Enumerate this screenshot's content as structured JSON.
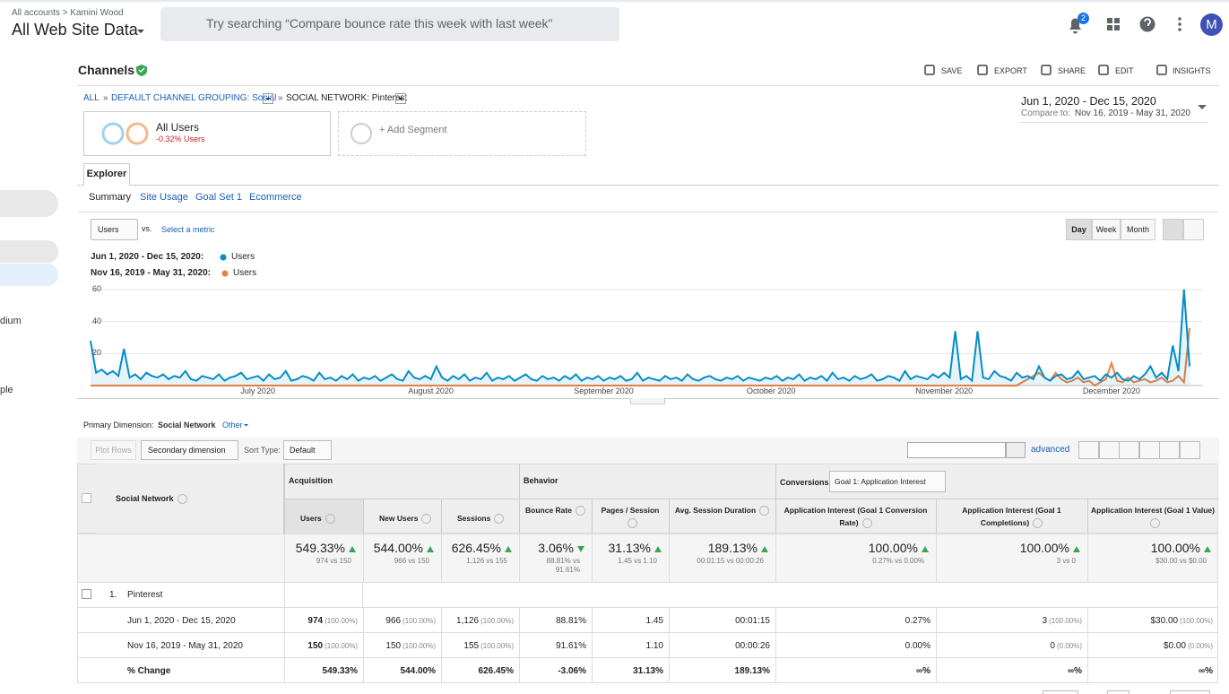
{
  "header": {
    "breadcrumb": "All accounts > Kamini Wood",
    "property": "All Web Site Data",
    "search_placeholder": "Try searching “Compare bounce rate this week with last week”",
    "notifications": "2",
    "avatar": "M"
  },
  "sidebar": {
    "items": [
      "dium",
      "ple"
    ]
  },
  "report": {
    "title": "Channels",
    "actions": [
      "SAVE",
      "EXPORT",
      "SHARE",
      "EDIT",
      "INSIGHTS"
    ],
    "breadcrumb": [
      "ALL",
      "DEFAULT CHANNEL GROUPING: Social",
      "SOCIAL NETWORK: Pinterest"
    ],
    "breadcrumb_separator": "»",
    "date_range": "Jun 1, 2020 - Dec 15, 2020",
    "compare_label": "Compare to:",
    "compare_range": "Nov 16, 2019 - May 31, 2020",
    "segment": {
      "name": "All Users",
      "change": "-0.32% Users"
    },
    "add_segment": "+ Add Segment",
    "tab": "Explorer",
    "subtabs": [
      "Summary",
      "Site Usage",
      "Goal Set 1",
      "Ecommerce"
    ],
    "metric": "Users",
    "vs": "vs.",
    "select_metric": "Select a metric",
    "granularity": [
      "Day",
      "Week",
      "Month"
    ]
  },
  "chart_data": {
    "type": "line",
    "series": [
      {
        "name": "Users",
        "period": "Jun 1, 2020 - Dec 15, 2020:",
        "color": "#058dc7",
        "values": [
          28,
          8,
          10,
          7,
          9,
          6,
          23,
          5,
          7,
          4,
          8,
          6,
          5,
          7,
          4,
          6,
          5,
          9,
          4,
          3,
          6,
          5,
          4,
          7,
          3,
          5,
          6,
          8,
          4,
          5,
          6,
          3,
          7,
          4,
          5,
          9,
          3,
          4,
          6,
          5,
          3,
          8,
          4,
          5,
          3,
          6,
          4,
          7,
          3,
          5,
          4,
          6,
          3,
          5,
          7,
          4,
          3,
          9,
          5,
          4,
          6,
          4,
          12,
          5,
          3,
          6,
          4,
          7,
          3,
          5,
          4,
          8,
          3,
          5,
          4,
          6,
          3,
          5,
          7,
          4,
          3,
          6,
          4,
          5,
          3,
          6,
          4,
          7,
          3,
          5,
          4,
          6,
          3,
          5,
          4,
          6,
          3,
          4,
          8,
          3,
          5,
          4,
          3,
          6,
          4,
          5,
          3,
          7,
          4,
          3,
          5,
          6,
          4,
          3,
          5,
          4,
          6,
          3,
          5,
          4,
          3,
          5,
          4,
          6,
          3,
          5,
          4,
          7,
          3,
          5,
          4,
          6,
          3,
          8,
          4,
          5,
          3,
          6,
          4,
          5,
          7,
          3,
          4,
          6,
          5,
          3,
          9,
          4,
          6,
          5,
          4,
          7,
          5,
          8,
          5,
          34,
          4,
          6,
          3,
          34,
          5,
          4,
          9,
          6,
          5,
          3,
          8,
          5,
          6,
          4,
          12,
          5,
          3,
          6,
          7,
          4,
          5,
          9,
          4,
          5,
          6,
          3,
          7,
          5,
          8,
          4,
          3,
          6,
          4,
          7,
          12,
          5,
          8,
          4,
          25,
          9,
          60,
          12
        ]
      },
      {
        "name": "Users",
        "period": "Nov 16, 2019 - May 31, 2020:",
        "color": "#ed7e3d",
        "values": [
          0,
          0,
          0,
          0,
          0,
          0,
          0,
          0,
          0,
          0,
          0,
          0,
          0,
          0,
          0,
          0,
          0,
          0,
          0,
          0,
          0,
          0,
          0,
          0,
          0,
          0,
          0,
          0,
          0,
          0,
          0,
          0,
          0,
          0,
          0,
          0,
          0,
          0,
          0,
          0,
          0,
          0,
          0,
          0,
          0,
          0,
          0,
          0,
          0,
          0,
          0,
          0,
          0,
          0,
          0,
          0,
          0,
          0,
          0,
          0,
          0,
          0,
          0,
          0,
          0,
          0,
          0,
          0,
          0,
          0,
          0,
          0,
          0,
          0,
          0,
          0,
          0,
          0,
          0,
          0,
          0,
          0,
          0,
          0,
          0,
          0,
          0,
          0,
          0,
          0,
          0,
          0,
          0,
          0,
          0,
          0,
          0,
          0,
          0,
          0,
          0,
          0,
          0,
          0,
          0,
          0,
          0,
          0,
          0,
          0,
          0,
          0,
          0,
          0,
          0,
          0,
          0,
          0,
          0,
          0,
          0,
          0,
          0,
          0,
          0,
          0,
          0,
          0,
          0,
          0,
          0,
          0,
          0,
          0,
          0,
          0,
          0,
          0,
          0,
          0,
          0,
          0,
          0,
          0,
          0,
          0,
          0,
          0,
          0,
          0,
          0,
          0,
          0,
          0,
          0,
          0,
          0,
          0,
          0,
          0,
          0,
          0,
          0,
          0,
          0,
          0,
          0,
          2,
          4,
          6,
          8,
          5,
          3,
          8,
          4,
          2,
          3,
          5,
          2,
          3,
          0,
          2,
          4,
          14,
          3,
          2,
          5,
          2,
          3,
          4,
          2,
          3,
          5,
          2,
          3,
          6,
          2,
          36
        ]
      }
    ],
    "ylim": [
      0,
      60
    ],
    "yticks": [
      20,
      40,
      60
    ],
    "xlim": [
      0,
      197
    ],
    "xticks": [
      {
        "value": 30,
        "label": "July 2020"
      },
      {
        "value": 61,
        "label": "August 2020"
      },
      {
        "value": 92,
        "label": "September 2020"
      },
      {
        "value": 122,
        "label": "October 2020"
      },
      {
        "value": 153,
        "label": "November 2020"
      },
      {
        "value": 183,
        "label": "December 2020"
      }
    ],
    "grid": true
  },
  "table": {
    "primary_dimension_label": "Primary Dimension:",
    "primary_dimension": "Social Network",
    "other": "Other",
    "plot_rows": "Plot Rows",
    "secondary_dimension": "Secondary dimension",
    "sort_type_label": "Sort Type:",
    "sort_type": "Default",
    "advanced": "advanced",
    "dimension_header": "Social Network",
    "groups": [
      {
        "name": "Acquisition"
      },
      {
        "name": "Behavior"
      },
      {
        "name": "Conversions",
        "select": "Goal 1: Application Interest"
      }
    ],
    "columns": [
      "Users",
      "New Users",
      "Sessions",
      "Bounce Rate",
      "Pages / Session",
      "Avg. Session Duration",
      "Application Interest (Goal 1 Conversion Rate)",
      "Application Interest (Goal 1 Completions)",
      "Application Interest (Goal 1 Value)"
    ],
    "totals": [
      {
        "value": "549.33%",
        "detail": "974 vs 150",
        "trend": "up"
      },
      {
        "value": "544.00%",
        "detail": "966 vs 150",
        "trend": "up"
      },
      {
        "value": "626.45%",
        "detail": "1,126 vs 155",
        "trend": "up"
      },
      {
        "value": "3.06%",
        "detail": "88.81% vs 91.61%",
        "trend": "down"
      },
      {
        "value": "31.13%",
        "detail": "1.45 vs 1.10",
        "trend": "up"
      },
      {
        "value": "189.13%",
        "detail": "00:01:15 vs 00:00:26",
        "trend": "up"
      },
      {
        "value": "100.00%",
        "detail": "0.27% vs 0.00%",
        "trend": "up"
      },
      {
        "value": "100.00%",
        "detail": "3 vs 0",
        "trend": "up"
      },
      {
        "value": "100.00%",
        "detail": "$30.00 vs $0.00",
        "trend": "up"
      }
    ],
    "group_row": {
      "index": "1.",
      "name": "Pinterest"
    },
    "rows": [
      {
        "label": "Jun 1, 2020 - Dec 15, 2020",
        "cells": [
          {
            "value": "974",
            "share": "(100.00%)"
          },
          {
            "value": "966",
            "share": "(100.00%)"
          },
          {
            "value": "1,126",
            "share": "(100.00%)"
          },
          {
            "value": "88.81%"
          },
          {
            "value": "1.45"
          },
          {
            "value": "00:01:15"
          },
          {
            "value": "0.27%"
          },
          {
            "value": "3",
            "share": "(100.00%)"
          },
          {
            "value": "$30.00",
            "share": "(100.00%)"
          }
        ]
      },
      {
        "label": "Nov 16, 2019 - May 31, 2020",
        "cells": [
          {
            "value": "150",
            "share": "(100.00%)"
          },
          {
            "value": "150",
            "share": "(100.00%)"
          },
          {
            "value": "155",
            "share": "(100.00%)"
          },
          {
            "value": "91.61%"
          },
          {
            "value": "1.10"
          },
          {
            "value": "00:00:26"
          },
          {
            "value": "0.00%"
          },
          {
            "value": "0",
            "share": "(0.00%)"
          },
          {
            "value": "$0.00",
            "share": "(0.00%)"
          }
        ]
      },
      {
        "label": "% Change",
        "bold": true,
        "cells": [
          {
            "value": "549.33%"
          },
          {
            "value": "544.00%"
          },
          {
            "value": "626.45%"
          },
          {
            "value": "-3.06%"
          },
          {
            "value": "31.13%"
          },
          {
            "value": "189.13%"
          },
          {
            "value": "∞%"
          },
          {
            "value": "∞%"
          },
          {
            "value": "∞%"
          }
        ]
      }
    ]
  }
}
